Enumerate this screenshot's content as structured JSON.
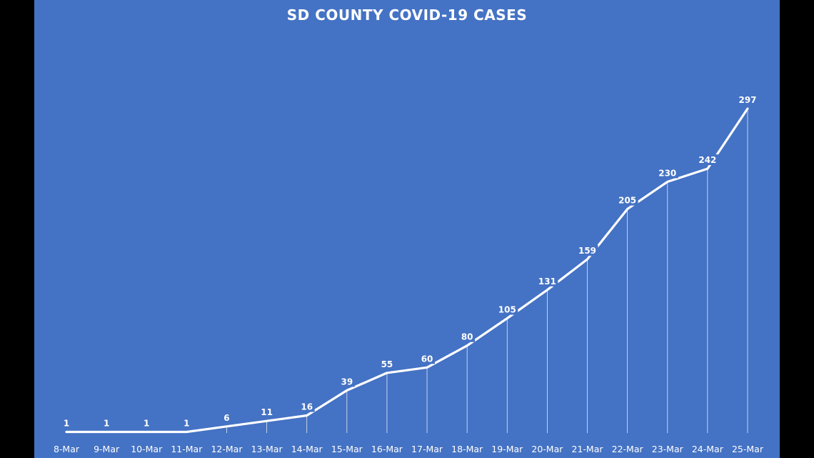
{
  "chart_data": {
    "type": "line",
    "title": "SD COUNTY COVID-19 CASES",
    "xlabel": "",
    "ylabel": "",
    "categories": [
      "8-Mar",
      "9-Mar",
      "10-Mar",
      "11-Mar",
      "12-Mar",
      "13-Mar",
      "14-Mar",
      "15-Mar",
      "16-Mar",
      "17-Mar",
      "18-Mar",
      "19-Mar",
      "20-Mar",
      "21-Mar",
      "22-Mar",
      "23-Mar",
      "24-Mar",
      "25-Mar"
    ],
    "series": [
      {
        "values": [
          1,
          1,
          1,
          1,
          6,
          11,
          16,
          39,
          55,
          60,
          80,
          105,
          131,
          159,
          205,
          230,
          242,
          297
        ]
      }
    ],
    "ylim": [
      0,
      297
    ],
    "grid": false,
    "legend": "none",
    "data_labels": true,
    "drop_lines": true,
    "colors": {
      "background": "#4472C4",
      "frame": "#000000",
      "line": "#ffffff",
      "text": "#ffffff"
    }
  }
}
